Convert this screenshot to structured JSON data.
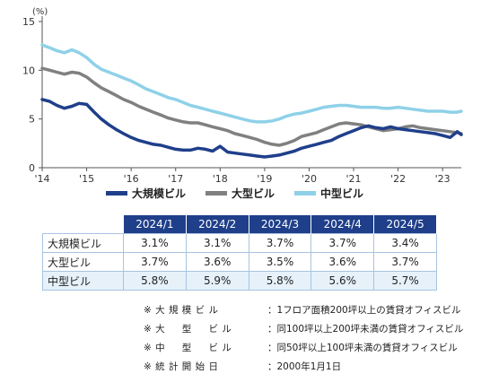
{
  "chart_data": {
    "type": "line",
    "unit": "(%)",
    "x_tick_labels": [
      "'14",
      "'15",
      "'16",
      "'17",
      "'18",
      "'19",
      "'20",
      "'21",
      "'22",
      "'23"
    ],
    "y_ticks": [
      0,
      5,
      10,
      15
    ],
    "xlim": [
      2014.0,
      2023.42
    ],
    "ylim": [
      0,
      15
    ],
    "x": [
      2014.0,
      2014.17,
      2014.33,
      2014.5,
      2014.67,
      2014.83,
      2015.0,
      2015.17,
      2015.33,
      2015.5,
      2015.67,
      2015.83,
      2016.0,
      2016.17,
      2016.33,
      2016.5,
      2016.67,
      2016.83,
      2017.0,
      2017.17,
      2017.33,
      2017.5,
      2017.67,
      2017.83,
      2018.0,
      2018.17,
      2018.33,
      2018.5,
      2018.67,
      2018.83,
      2019.0,
      2019.17,
      2019.33,
      2019.5,
      2019.67,
      2019.83,
      2020.0,
      2020.17,
      2020.33,
      2020.5,
      2020.67,
      2020.83,
      2021.0,
      2021.17,
      2021.33,
      2021.5,
      2021.67,
      2021.83,
      2022.0,
      2022.17,
      2022.33,
      2022.5,
      2022.67,
      2022.83,
      2023.0,
      2023.17,
      2023.33,
      2023.42
    ],
    "series": [
      {
        "name": "大規模ビル",
        "color": "#1f3f8a",
        "values": [
          7.0,
          6.8,
          6.4,
          6.1,
          6.3,
          6.6,
          6.5,
          5.7,
          5.0,
          4.4,
          3.9,
          3.5,
          3.1,
          2.8,
          2.6,
          2.4,
          2.3,
          2.1,
          1.9,
          1.8,
          1.8,
          2.0,
          1.9,
          1.7,
          2.2,
          1.6,
          1.5,
          1.4,
          1.3,
          1.2,
          1.1,
          1.2,
          1.3,
          1.5,
          1.7,
          2.0,
          2.2,
          2.4,
          2.6,
          2.8,
          3.2,
          3.5,
          3.8,
          4.1,
          4.3,
          4.1,
          4.0,
          4.2,
          4.0,
          3.9,
          3.8,
          3.7,
          3.6,
          3.5,
          3.3,
          3.1,
          3.7,
          3.4
        ]
      },
      {
        "name": "大型ビル",
        "color": "#808080",
        "values": [
          10.2,
          10.0,
          9.8,
          9.6,
          9.8,
          9.7,
          9.3,
          8.7,
          8.2,
          7.8,
          7.4,
          7.0,
          6.7,
          6.3,
          6.0,
          5.7,
          5.4,
          5.1,
          4.9,
          4.7,
          4.6,
          4.6,
          4.4,
          4.2,
          4.0,
          3.8,
          3.5,
          3.3,
          3.1,
          2.9,
          2.6,
          2.4,
          2.3,
          2.5,
          2.8,
          3.2,
          3.4,
          3.6,
          3.9,
          4.2,
          4.5,
          4.6,
          4.5,
          4.4,
          4.2,
          4.0,
          3.8,
          3.9,
          4.0,
          4.2,
          4.3,
          4.1,
          4.0,
          3.9,
          3.8,
          3.7,
          3.6,
          3.5
        ]
      },
      {
        "name": "中型ビル",
        "color": "#8ed1e8",
        "values": [
          12.6,
          12.3,
          12.0,
          11.8,
          12.1,
          11.8,
          11.3,
          10.6,
          10.1,
          9.8,
          9.5,
          9.2,
          8.9,
          8.5,
          8.1,
          7.8,
          7.5,
          7.2,
          7.0,
          6.7,
          6.4,
          6.2,
          6.0,
          5.8,
          5.6,
          5.4,
          5.2,
          5.0,
          4.8,
          4.7,
          4.7,
          4.8,
          5.0,
          5.3,
          5.5,
          5.6,
          5.8,
          6.0,
          6.2,
          6.3,
          6.4,
          6.4,
          6.3,
          6.2,
          6.2,
          6.2,
          6.1,
          6.1,
          6.2,
          6.1,
          6.0,
          5.9,
          5.8,
          5.8,
          5.8,
          5.7,
          5.7,
          5.8
        ]
      }
    ],
    "legend": [
      "大規模ビル",
      "大型ビル",
      "中型ビル"
    ],
    "legend_position": "bottom"
  },
  "table": {
    "headers": [
      "2024/1",
      "2024/2",
      "2024/3",
      "2024/4",
      "2024/5"
    ],
    "rows": [
      {
        "label": "大規模ビル",
        "values": [
          "3.1%",
          "3.1%",
          "3.7%",
          "3.7%",
          "3.4%"
        ]
      },
      {
        "label": "大型ビル",
        "values": [
          "3.7%",
          "3.6%",
          "3.5%",
          "3.6%",
          "3.7%"
        ]
      },
      {
        "label": "中型ビル",
        "values": [
          "5.8%",
          "5.9%",
          "5.8%",
          "5.6%",
          "5.7%"
        ]
      }
    ]
  },
  "notes": [
    {
      "label": "※ 大 規 模 ビ ル",
      "text": "：1フロア面積200坪以上の賃貸オフィスビル"
    },
    {
      "label": "※ 大 　 型 　 ビ ル",
      "text": "：同100坪以上200坪未満の賃貸オフィスビル"
    },
    {
      "label": "※ 中 　 型 　 ビ ル",
      "text": "：同50坪以上100坪未満の賃貸オフィスビル"
    },
    {
      "label": "※ 統 計 開 始 日",
      "text": "：2000年1月1日"
    }
  ]
}
